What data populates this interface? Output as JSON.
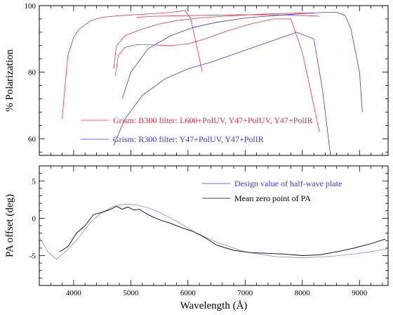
{
  "chart_data": [
    {
      "type": "line",
      "ylabel": "% Polarization",
      "xlim": [
        3400,
        9500
      ],
      "ylim": [
        55,
        100
      ],
      "yticks": [
        60,
        80,
        100
      ],
      "grid": false,
      "legend": [
        {
          "label": "Grism: B300 filter: L600+PolUV, Y47+PolUV, Y47+PolIR",
          "color": "#e8314a"
        },
        {
          "label": "Grism: R300 filter: Y47+PolUV, Y47+PolIR",
          "color": "#3a3adf"
        }
      ],
      "series": [
        {
          "color": "#e8314a",
          "x": [
            3800,
            3850,
            3900,
            4000,
            4100,
            4300,
            4500,
            4800,
            5100,
            5400,
            5700,
            5950,
            6050,
            6150,
            6250
          ],
          "y": [
            66,
            76,
            85,
            90.5,
            93,
            95.5,
            96.5,
            97,
            97.3,
            97.6,
            98,
            98.5,
            96,
            88,
            80
          ]
        },
        {
          "color": "#e8314a",
          "x": [
            4700,
            4750,
            4900,
            5200,
            5500,
            5800,
            6200,
            6600,
            7000,
            7400,
            7800,
            8200
          ],
          "y": [
            81,
            88,
            91,
            93,
            94.5,
            95.5,
            96.3,
            96.8,
            97.2,
            97.5,
            97.7,
            97.8
          ]
        },
        {
          "color": "#e8314a",
          "x": [
            4730,
            4780,
            4900,
            5100,
            5400,
            5700,
            6000,
            6300,
            6700,
            7100,
            7500,
            7800,
            8000,
            8150,
            8300
          ],
          "y": [
            79,
            85,
            87.5,
            88.3,
            88.2,
            88,
            88.5,
            90,
            92.5,
            94.5,
            96,
            96,
            86,
            74,
            62
          ]
        },
        {
          "color": "#e8314a",
          "x": [
            5100,
            5400,
            6000,
            6600,
            7200,
            7700,
            8100,
            8300
          ],
          "y": [
            96.5,
            96.8,
            97,
            97.2,
            97.3,
            97.2,
            97,
            96.8
          ]
        },
        {
          "color": "#3a3adf",
          "x": [
            4850,
            5000,
            5300,
            5700,
            6100,
            6500,
            7000,
            7500,
            7900,
            8200,
            8400,
            8600,
            8750,
            8850,
            9000,
            9050
          ],
          "y": [
            72,
            80,
            87,
            91,
            93.5,
            95,
            96.3,
            97,
            97.5,
            97.8,
            98,
            98,
            97,
            93,
            80,
            68
          ]
        },
        {
          "color": "#3a3adf",
          "x": [
            4700,
            4900,
            5200,
            5600,
            6000,
            6400,
            6900,
            7400,
            7900,
            8200,
            8350,
            8500
          ],
          "y": [
            58,
            66,
            73,
            78,
            81,
            83,
            86,
            89,
            92,
            90,
            75,
            54
          ]
        }
      ]
    },
    {
      "type": "line",
      "xlabel": "Wavelength (Å)",
      "ylabel": "PA offset (deg)",
      "xlim": [
        3400,
        9500
      ],
      "ylim": [
        -9,
        7
      ],
      "xticks": [
        4000,
        5000,
        6000,
        7000,
        8000,
        9000
      ],
      "yticks": [
        -5,
        0,
        5
      ],
      "grid": false,
      "legend": [
        {
          "label": "Design value of half-wave plate",
          "color": "#3a3adf"
        },
        {
          "label": "Mean zero point of PA",
          "color": "#000000"
        }
      ],
      "series": [
        {
          "name": "Design value of half-wave plate",
          "color": "#8a8ae6",
          "x": [
            3400,
            3550,
            3700,
            3900,
            4100,
            4300,
            4500,
            4700,
            4900,
            5100,
            5300,
            5500,
            5800,
            6100,
            6500,
            7000,
            7500,
            8000,
            8500,
            9000,
            9500
          ],
          "y": [
            -2.5,
            -4.5,
            -5.5,
            -4.2,
            -2.5,
            -0.5,
            0.8,
            1.6,
            1.9,
            1.8,
            1.4,
            0.8,
            -0.4,
            -1.8,
            -3.2,
            -4.5,
            -5.1,
            -5.3,
            -5.1,
            -4.7,
            -4.1
          ]
        },
        {
          "name": "Mean zero point of PA",
          "color": "#000000",
          "x": [
            3750,
            3900,
            4050,
            4200,
            4350,
            4500,
            4650,
            4750,
            4850,
            4950,
            5050,
            5150,
            5250,
            5350,
            5500,
            5700,
            5900,
            6100,
            6300,
            6500,
            6800,
            7100,
            7400,
            7700,
            8000,
            8300,
            8600,
            8900,
            9200,
            9450
          ],
          "y": [
            -4.5,
            -3.8,
            -2.0,
            -1.0,
            0.5,
            0.8,
            1.2,
            1.6,
            1.2,
            1.5,
            1.1,
            1.2,
            0.7,
            0.3,
            -0.2,
            -0.7,
            -1.3,
            -1.8,
            -2.6,
            -3.6,
            -4.3,
            -4.6,
            -4.7,
            -4.8,
            -5.0,
            -4.9,
            -4.5,
            -4.0,
            -3.4,
            -2.8
          ]
        }
      ]
    }
  ]
}
